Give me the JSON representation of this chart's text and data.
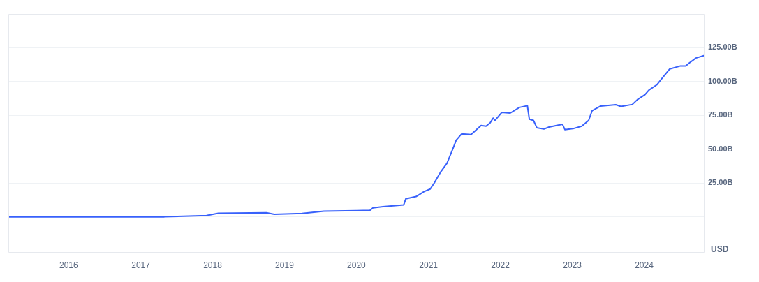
{
  "chart_data": {
    "type": "line",
    "ylabel": "USD",
    "marker": "none",
    "grid": "y",
    "legend": false,
    "xlim": [
      "2015-03-01",
      "2024-10-30"
    ],
    "xticks": [
      "2016",
      "2017",
      "2018",
      "2019",
      "2020",
      "2021",
      "2022",
      "2023",
      "2024"
    ],
    "ylim": [
      -26,
      150
    ],
    "yticks": [
      {
        "value": 0,
        "label": null
      },
      {
        "value": 25,
        "label": "25.00B"
      },
      {
        "value": 50,
        "label": "50.00B"
      },
      {
        "value": 75,
        "label": "75.00B"
      },
      {
        "value": 100,
        "label": "100.00B"
      },
      {
        "value": 125,
        "label": "125.00B"
      }
    ],
    "series": [
      {
        "color": "#3861fb",
        "x": [
          "2015-03-01",
          "2017-05-01",
          "2017-12-01",
          "2018-01-30",
          "2018-10-01",
          "2018-11-10",
          "2019-04-01",
          "2019-07-20",
          "2020-01-01",
          "2020-03-10",
          "2020-03-25",
          "2020-05-15",
          "2020-08-28",
          "2020-09-08",
          "2020-10-30",
          "2020-12-10",
          "2021-01-10",
          "2021-01-30",
          "2021-03-03",
          "2021-04-05",
          "2021-05-08",
          "2021-05-22",
          "2021-06-18",
          "2021-08-05",
          "2021-09-25",
          "2021-10-20",
          "2021-11-10",
          "2021-11-25",
          "2021-12-05",
          "2022-01-08",
          "2022-02-20",
          "2022-04-08",
          "2022-05-18",
          "2022-05-28",
          "2022-06-18",
          "2022-07-05",
          "2022-08-10",
          "2022-09-05",
          "2022-11-12",
          "2022-11-25",
          "2023-01-10",
          "2023-02-18",
          "2023-03-25",
          "2023-04-12",
          "2023-05-25",
          "2023-08-10",
          "2023-09-05",
          "2023-11-02",
          "2023-11-28",
          "2024-01-05",
          "2024-01-25",
          "2024-03-05",
          "2024-04-01",
          "2024-05-10",
          "2024-07-01",
          "2024-07-30",
          "2024-08-18",
          "2024-09-20",
          "2024-10-30"
        ],
        "values": [
          0,
          0,
          1,
          2.6,
          3,
          1.9,
          2.5,
          4.2,
          4.6,
          4.8,
          6.7,
          7.5,
          8.8,
          13.4,
          15,
          18.7,
          20.6,
          25,
          33,
          39.6,
          51.5,
          56.8,
          61.3,
          60.8,
          67.5,
          67,
          69.5,
          73,
          71.3,
          77.2,
          76.7,
          80.9,
          82.2,
          72.2,
          71.3,
          65.9,
          64.9,
          66.4,
          68.5,
          64.4,
          65.4,
          67,
          71.3,
          78.5,
          81.9,
          82.9,
          81.6,
          83.1,
          86.7,
          90.3,
          93.7,
          97.6,
          102.5,
          109.4,
          111.5,
          111.5,
          113.9,
          117.4,
          119.2
        ]
      }
    ]
  }
}
